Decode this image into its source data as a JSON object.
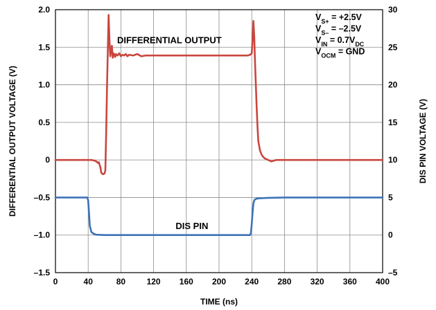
{
  "chart_data": {
    "type": "line",
    "xlabel": "TIME (ns)",
    "ylabel_left": "DIFFERENTIAL OUTPUT VOLTAGE (V)",
    "ylabel_right": "DIS PIN VOLTAGE (V)",
    "xlim": [
      0,
      400
    ],
    "ylim_left": [
      -1.5,
      2.0
    ],
    "ylim_right": [
      -5,
      30
    ],
    "x_ticks": [
      0,
      40,
      80,
      120,
      160,
      200,
      240,
      280,
      320,
      360,
      400
    ],
    "x_tick_labels": [
      "0",
      "40",
      "80",
      "120",
      "160",
      "200",
      "240",
      "280",
      "320",
      "360",
      "400"
    ],
    "y_left_ticks": [
      -1.5,
      -1.0,
      -0.5,
      0,
      0.5,
      1.0,
      1.5,
      2.0
    ],
    "y_left_tick_labels": [
      "–1.5",
      "–1.0",
      "–0.5",
      "0",
      "0.5",
      "1.0",
      "1.5",
      "2.0"
    ],
    "y_right_ticks": [
      -5,
      0,
      5,
      10,
      15,
      20,
      25,
      30
    ],
    "y_right_tick_labels": [
      "–5",
      "0",
      "5",
      "10",
      "15",
      "20",
      "25",
      "30"
    ],
    "grid": true,
    "colors": {
      "output": "#c9463e",
      "dis": "#3c72b7"
    },
    "annotations": [
      {
        "text": "DIFFERENTIAL OUTPUT",
        "x": 72,
        "y": 1.6
      },
      {
        "text": "DIS PIN",
        "x": 130,
        "y": -0.9
      }
    ],
    "conditions": [
      {
        "main": "V",
        "sub": "S+",
        "rest": " = +2.5V"
      },
      {
        "main": "V",
        "sub": "S–",
        "rest": " = –2.5V"
      },
      {
        "main": "V",
        "sub": "IN",
        "rest": " = 0.7V",
        "sub2": "DC"
      },
      {
        "main": "V",
        "sub": "OCM",
        "rest": " = GND"
      }
    ],
    "series": [
      {
        "name": "DIFFERENTIAL OUTPUT",
        "axis": "left",
        "x": [
          0,
          40,
          44,
          48,
          50,
          52,
          53,
          55,
          56,
          58,
          60,
          61,
          62,
          63,
          64,
          65,
          66,
          67,
          68,
          69,
          70,
          71,
          72,
          73,
          74,
          76,
          78,
          80,
          82,
          84,
          86,
          88,
          90,
          95,
          100,
          105,
          110,
          120,
          140,
          160,
          180,
          200,
          220,
          235,
          238,
          240,
          241,
          242,
          243,
          244,
          245,
          246,
          247,
          248,
          250,
          252,
          254,
          256,
          258,
          260,
          262,
          264,
          270,
          280,
          300,
          320,
          340,
          360,
          380,
          400
        ],
        "y": [
          0.0,
          0.0,
          0.0,
          -0.01,
          -0.02,
          -0.04,
          -0.03,
          -0.1,
          -0.17,
          -0.19,
          -0.18,
          -0.14,
          0.35,
          0.95,
          1.45,
          1.93,
          1.6,
          1.38,
          1.46,
          1.52,
          1.36,
          1.42,
          1.4,
          1.37,
          1.41,
          1.39,
          1.42,
          1.38,
          1.4,
          1.39,
          1.41,
          1.38,
          1.4,
          1.39,
          1.41,
          1.38,
          1.39,
          1.39,
          1.39,
          1.39,
          1.39,
          1.39,
          1.39,
          1.39,
          1.4,
          1.42,
          1.6,
          1.85,
          1.65,
          1.3,
          1.0,
          0.7,
          0.45,
          0.25,
          0.13,
          0.07,
          0.04,
          0.02,
          0.01,
          0.0,
          -0.01,
          -0.02,
          0.0,
          0.0,
          0.0,
          0.0,
          0.0,
          0.0,
          0.0,
          0.0
        ]
      },
      {
        "name": "DIS PIN",
        "axis": "right",
        "x": [
          0,
          38,
          39,
          40,
          41,
          42,
          44,
          47,
          50,
          60,
          100,
          150,
          200,
          238,
          239,
          240,
          241,
          242,
          243,
          244,
          246,
          250,
          260,
          280,
          300,
          350,
          400
        ],
        "y": [
          5.0,
          5.0,
          5.0,
          4.6,
          3.0,
          1.2,
          0.4,
          0.15,
          0.05,
          0.0,
          0.0,
          0.0,
          0.0,
          0.0,
          0.3,
          1.5,
          3.0,
          4.2,
          4.6,
          4.75,
          4.85,
          4.9,
          4.95,
          5.0,
          5.0,
          5.0,
          5.0
        ]
      }
    ]
  }
}
